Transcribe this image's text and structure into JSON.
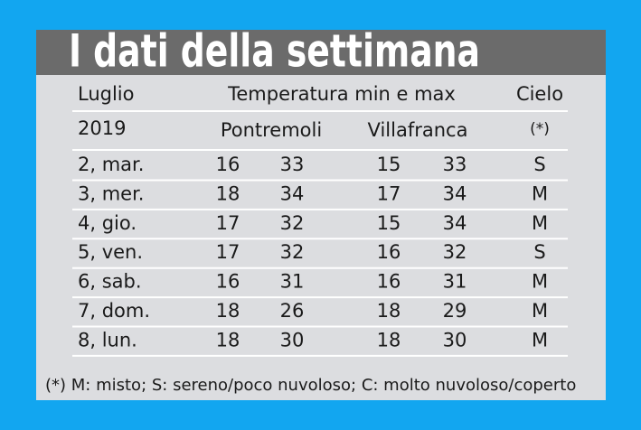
{
  "header": {
    "title": "I dati della settimana"
  },
  "table": {
    "head1": [
      "Luglio",
      "Temperatura min e max",
      "Cielo"
    ],
    "head2": [
      "2019",
      "Pontremoli",
      "Villafranca",
      "(*)"
    ],
    "rows": [
      [
        "2, mar.",
        16,
        33,
        15,
        33,
        "S"
      ],
      [
        "3, mer.",
        18,
        34,
        17,
        34,
        "M"
      ],
      [
        "4, gio.",
        17,
        32,
        15,
        34,
        "M"
      ],
      [
        "5, ven.",
        17,
        32,
        16,
        32,
        "S"
      ],
      [
        "6, sab.",
        16,
        31,
        16,
        31,
        "M"
      ],
      [
        "7, dom.",
        18,
        26,
        18,
        29,
        "M"
      ],
      [
        "8, lun.",
        18,
        30,
        18,
        30,
        "M"
      ]
    ]
  },
  "footnote": "(*) M: misto; S: sereno/poco nuvoloso; C: molto nuvoloso/coperto"
}
